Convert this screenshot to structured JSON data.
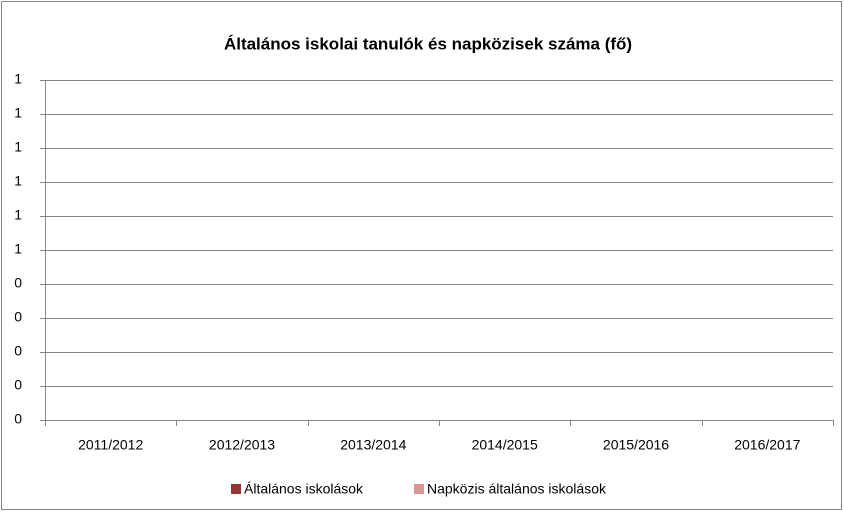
{
  "chart_data": {
    "type": "bar",
    "title": "Általános iskolai tanulók és napközisek száma (fő)",
    "categories": [
      "2011/2012",
      "2012/2013",
      "2013/2014",
      "2014/2015",
      "2015/2016",
      "2016/2017"
    ],
    "series": [
      {
        "name": "Általános iskolások",
        "color": "#953735",
        "values": [
          null,
          null,
          null,
          null,
          null,
          null
        ]
      },
      {
        "name": "Napközis általános iskolások",
        "color": "#d99694",
        "values": [
          null,
          null,
          null,
          null,
          null,
          null
        ]
      }
    ],
    "ylim": [
      0,
      1
    ],
    "yticks": [
      0,
      {
        "value": 0.1,
        "label": "0"
      },
      {
        "value": 0.2,
        "label": "0"
      },
      {
        "value": 0.3,
        "label": "0"
      },
      {
        "value": 0.4,
        "label": "0"
      },
      {
        "value": 0.5,
        "label": "1"
      },
      {
        "value": 0.6,
        "label": "1"
      },
      {
        "value": 0.7,
        "label": "1"
      },
      {
        "value": 0.8,
        "label": "1"
      },
      {
        "value": 0.9,
        "label": "1"
      },
      1
    ],
    "grid": true,
    "legend": "bottom"
  }
}
